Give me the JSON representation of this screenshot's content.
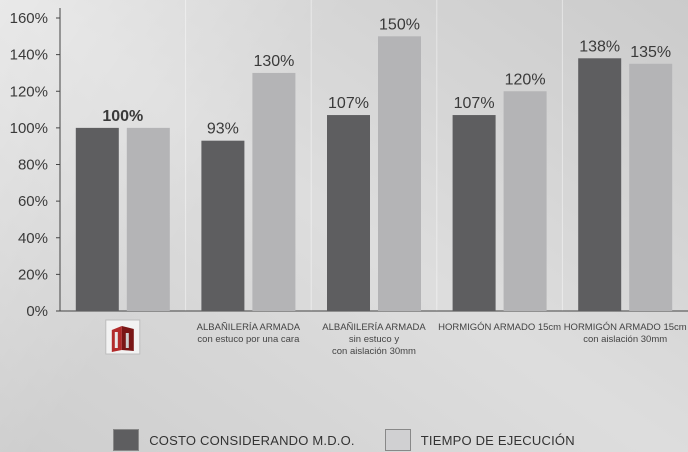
{
  "chart_data": {
    "type": "bar",
    "title": "",
    "xlabel": "",
    "ylabel": "",
    "ylim": [
      0,
      160
    ],
    "yticks": [
      "0%",
      "20%",
      "40%",
      "60%",
      "80%",
      "100%",
      "120%",
      "140%",
      "160%"
    ],
    "categories": [
      {
        "lines": []
      },
      {
        "lines": [
          "ALBAÑILERÍA ARMADA",
          "con estuco por una cara"
        ]
      },
      {
        "lines": [
          "ALBAÑILERÍA ARMADA",
          "sin estuco y",
          "con aislación 30mm"
        ]
      },
      {
        "lines": [
          "HORMIGÓN ARMADO 15cm"
        ]
      },
      {
        "lines": [
          "HORMIGÓN ARMADO 15cm",
          "con aislación 30mm"
        ]
      }
    ],
    "first_category_icon": "brick-block-icon",
    "series": [
      {
        "name": "COSTO CONSIDERANDO M.D.O.",
        "color": "#5e5e60",
        "values": [
          100,
          93,
          107,
          107,
          138
        ]
      },
      {
        "name": "TIEMPO DE EJECUCIÓN",
        "color": "#b4b4b6",
        "values": [
          100,
          130,
          150,
          120,
          135
        ]
      }
    ],
    "labels": [
      {
        "text": "100%",
        "series": 0,
        "category": 0,
        "bold": true,
        "span_pair": true
      },
      {
        "text": "93%",
        "series": 0,
        "category": 1
      },
      {
        "text": "130%",
        "series": 1,
        "category": 1
      },
      {
        "text": "107%",
        "series": 0,
        "category": 2
      },
      {
        "text": "150%",
        "series": 1,
        "category": 2
      },
      {
        "text": "107%",
        "series": 0,
        "category": 3
      },
      {
        "text": "120%",
        "series": 1,
        "category": 3
      },
      {
        "text": "138%",
        "series": 0,
        "category": 4
      },
      {
        "text": "135%",
        "series": 1,
        "category": 4
      }
    ],
    "grid": false,
    "legend_position": "bottom-center"
  },
  "legend": {
    "items": [
      {
        "label": "COSTO CONSIDERANDO M.D.O.",
        "color": "#5e5e60"
      },
      {
        "label": "TIEMPO DE EJECUCIÓN",
        "color": "#d0d0d2"
      }
    ]
  }
}
